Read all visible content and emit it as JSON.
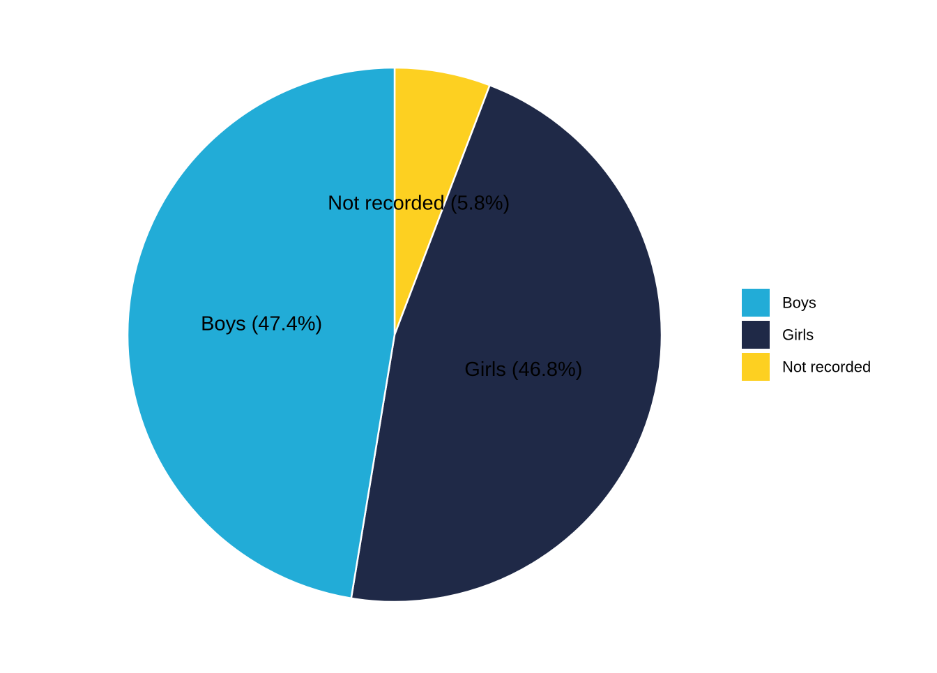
{
  "chart_data": {
    "type": "pie",
    "title": "",
    "start_angle_deg": 0,
    "direction": "clockwise",
    "slices": [
      {
        "name": "Not recorded",
        "value": 5.8,
        "label": "Not recorded (5.8%)",
        "color": "#FDD021"
      },
      {
        "name": "Girls",
        "value": 46.8,
        "label": "Girls (46.8%)",
        "color": "#1F2947"
      },
      {
        "name": "Boys",
        "value": 47.4,
        "label": "Boys (47.4%)",
        "color": "#22ACD7"
      }
    ],
    "legend": {
      "position": "right",
      "entries": [
        {
          "name": "Boys",
          "color": "#22ACD7"
        },
        {
          "name": "Girls",
          "color": "#1F2947"
        },
        {
          "name": "Not recorded",
          "color": "#FDD021"
        }
      ]
    },
    "slice_border_color": "#FFFFFF"
  }
}
